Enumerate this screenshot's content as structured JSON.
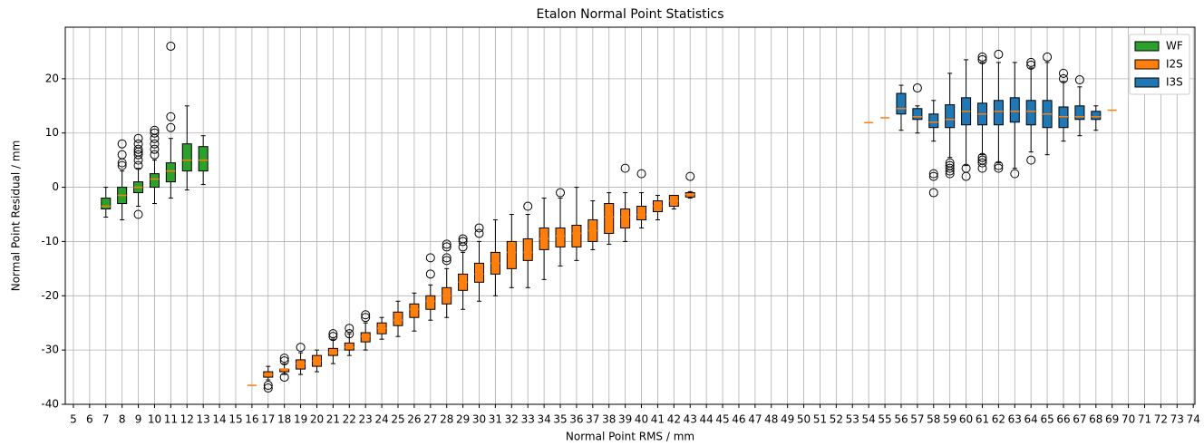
{
  "chart_data": {
    "type": "box",
    "title": "Etalon Normal Point Statistics",
    "x_label": "Normal Point RMS / mm",
    "y_label": "Normal Point Residual / mm",
    "xlim": [
      4.5,
      74.1
    ],
    "ylim": [
      -40,
      29.5
    ],
    "xticks": [
      5,
      6,
      7,
      8,
      9,
      10,
      11,
      12,
      13,
      14,
      15,
      16,
      17,
      18,
      19,
      20,
      21,
      22,
      23,
      24,
      25,
      26,
      27,
      28,
      29,
      30,
      31,
      32,
      33,
      34,
      35,
      36,
      37,
      38,
      39,
      40,
      41,
      42,
      43,
      44,
      45,
      46,
      47,
      48,
      49,
      50,
      51,
      52,
      53,
      54,
      55,
      56,
      57,
      58,
      59,
      60,
      61,
      62,
      63,
      64,
      65,
      66,
      67,
      68,
      69,
      70,
      71,
      72,
      73,
      74
    ],
    "yticks": [
      -40,
      -30,
      -20,
      -10,
      0,
      10,
      20
    ],
    "grid": true,
    "legend_position": "upper right",
    "median_color": "#ff7f0e",
    "series": [
      {
        "name": "WF",
        "color": "#2ca02c",
        "boxes": [
          {
            "x": 7,
            "low": -5.5,
            "q1": -4,
            "median": -3.5,
            "q3": -2,
            "high": 0,
            "outliers": []
          },
          {
            "x": 8,
            "low": -6,
            "q1": -3,
            "median": -1.5,
            "q3": 0,
            "high": 3,
            "outliers": [
              4,
              4.5,
              6,
              8
            ]
          },
          {
            "x": 9,
            "low": -3.5,
            "q1": -1,
            "median": 0,
            "q3": 1,
            "high": 3.5,
            "outliers": [
              -5,
              4,
              5,
              6,
              6.5,
              7,
              8,
              9
            ]
          },
          {
            "x": 10,
            "low": -3,
            "q1": 0,
            "median": 1.5,
            "q3": 2.5,
            "high": 5,
            "outliers": [
              6,
              7,
              8,
              9,
              10,
              10.5
            ]
          },
          {
            "x": 11,
            "low": -2,
            "q1": 1,
            "median": 3,
            "q3": 4.5,
            "high": 9,
            "outliers": [
              11,
              13,
              26
            ]
          },
          {
            "x": 12,
            "low": -0.5,
            "q1": 3,
            "median": 5,
            "q3": 8,
            "high": 15,
            "outliers": []
          },
          {
            "x": 13,
            "low": 0.5,
            "q1": 3,
            "median": 5,
            "q3": 7.5,
            "high": 9.5,
            "outliers": []
          }
        ]
      },
      {
        "name": "I2S",
        "color": "#ff7f0e",
        "boxes": [
          {
            "x": 16,
            "low": -36.5,
            "q1": -36.5,
            "median": -36.5,
            "q3": -36.5,
            "high": -36.5,
            "outliers": []
          },
          {
            "x": 17,
            "low": -35.5,
            "q1": -35,
            "median": -34.5,
            "q3": -34,
            "high": -33,
            "outliers": [
              -36.5,
              -37
            ]
          },
          {
            "x": 18,
            "low": -34.5,
            "q1": -34,
            "median": -33.5,
            "q3": -33.5,
            "high": -32.5,
            "outliers": [
              -32,
              -31.5,
              -35
            ]
          },
          {
            "x": 19,
            "low": -34.5,
            "q1": -33.5,
            "median": -32.5,
            "q3": -31.8,
            "high": -30.5,
            "outliers": [
              -29.5
            ]
          },
          {
            "x": 20,
            "low": -34,
            "q1": -33,
            "median": -32,
            "q3": -31,
            "high": -30,
            "outliers": []
          },
          {
            "x": 21,
            "low": -32.5,
            "q1": -31,
            "median": -30.5,
            "q3": -29.7,
            "high": -28,
            "outliers": [
              -27,
              -27.5
            ]
          },
          {
            "x": 22,
            "low": -31,
            "q1": -30,
            "median": -29.5,
            "q3": -28.7,
            "high": -27,
            "outliers": [
              -26,
              -27
            ]
          },
          {
            "x": 23,
            "low": -30,
            "q1": -28.5,
            "median": -27.5,
            "q3": -26.8,
            "high": -25,
            "outliers": [
              -24,
              -23.5
            ]
          },
          {
            "x": 24,
            "low": -28,
            "q1": -27,
            "median": -26,
            "q3": -25,
            "high": -24,
            "outliers": []
          },
          {
            "x": 25,
            "low": -27.5,
            "q1": -25.5,
            "median": -24.5,
            "q3": -23,
            "high": -21,
            "outliers": []
          },
          {
            "x": 26,
            "low": -26.5,
            "q1": -24,
            "median": -22.5,
            "q3": -21.5,
            "high": -19.5,
            "outliers": []
          },
          {
            "x": 27,
            "low": -24.5,
            "q1": -22.5,
            "median": -21,
            "q3": -20,
            "high": -18,
            "outliers": [
              -16,
              -13
            ]
          },
          {
            "x": 28,
            "low": -24,
            "q1": -21.5,
            "median": -20,
            "q3": -18.5,
            "high": -15,
            "outliers": [
              -13.5,
              -13,
              -11,
              -10.5
            ]
          },
          {
            "x": 29,
            "low": -22.5,
            "q1": -19,
            "median": -17.5,
            "q3": -16,
            "high": -12,
            "outliers": [
              -11,
              -10,
              -9.5
            ]
          },
          {
            "x": 30,
            "low": -21,
            "q1": -17.5,
            "median": -16,
            "q3": -14,
            "high": -10,
            "outliers": [
              -8.5,
              -7.5
            ]
          },
          {
            "x": 31,
            "low": -20,
            "q1": -16,
            "median": -14,
            "q3": -12,
            "high": -6,
            "outliers": []
          },
          {
            "x": 32,
            "low": -18.5,
            "q1": -15,
            "median": -12,
            "q3": -10,
            "high": -5,
            "outliers": []
          },
          {
            "x": 33,
            "low": -18.5,
            "q1": -13.5,
            "median": -12,
            "q3": -9.5,
            "high": -5,
            "outliers": [
              -3.5
            ]
          },
          {
            "x": 34,
            "low": -17,
            "q1": -11.5,
            "median": -9.5,
            "q3": -7.5,
            "high": -2,
            "outliers": []
          },
          {
            "x": 35,
            "low": -14.5,
            "q1": -11,
            "median": -9,
            "q3": -7.5,
            "high": -2,
            "outliers": [
              -1
            ]
          },
          {
            "x": 36,
            "low": -13.5,
            "q1": -11,
            "median": -8.5,
            "q3": -7,
            "high": 0,
            "outliers": []
          },
          {
            "x": 37,
            "low": -11.5,
            "q1": -10,
            "median": -8,
            "q3": -6,
            "high": -2.5,
            "outliers": []
          },
          {
            "x": 38,
            "low": -10.5,
            "q1": -8.5,
            "median": -5.5,
            "q3": -3,
            "high": -1,
            "outliers": []
          },
          {
            "x": 39,
            "low": -10,
            "q1": -7.5,
            "median": -5.5,
            "q3": -4,
            "high": -1,
            "outliers": [
              3.5
            ]
          },
          {
            "x": 40,
            "low": -7.5,
            "q1": -6,
            "median": -5,
            "q3": -3.5,
            "high": -1,
            "outliers": [
              2.5
            ]
          },
          {
            "x": 41,
            "low": -6,
            "q1": -4.5,
            "median": -3.5,
            "q3": -2.5,
            "high": -1.5,
            "outliers": []
          },
          {
            "x": 42,
            "low": -4,
            "q1": -3.5,
            "median": -2.5,
            "q3": -1.5,
            "high": -1.5,
            "outliers": []
          },
          {
            "x": 43,
            "low": -2,
            "q1": -1.8,
            "median": -1.3,
            "q3": -1,
            "high": -0.8,
            "outliers": [
              2
            ]
          }
        ]
      },
      {
        "name": "I3S",
        "color": "#1f77b4",
        "boxes": [
          {
            "x": 54,
            "low": 11.9,
            "q1": 11.9,
            "median": 11.9,
            "q3": 11.9,
            "high": 11.9,
            "outliers": []
          },
          {
            "x": 55,
            "low": 12.8,
            "q1": 12.8,
            "median": 12.8,
            "q3": 12.8,
            "high": 12.8,
            "outliers": []
          },
          {
            "x": 56,
            "low": 10.5,
            "q1": 13.5,
            "median": 14.5,
            "q3": 17.3,
            "high": 18.8,
            "outliers": []
          },
          {
            "x": 57,
            "low": 10,
            "q1": 12.5,
            "median": 13,
            "q3": 14.5,
            "high": 15,
            "outliers": [
              18.3
            ]
          },
          {
            "x": 58,
            "low": 8.5,
            "q1": 11,
            "median": 12,
            "q3": 13.5,
            "high": 16,
            "outliers": [
              2,
              2.5,
              -1
            ]
          },
          {
            "x": 59,
            "low": 5.5,
            "q1": 11,
            "median": 12.5,
            "q3": 15.2,
            "high": 21,
            "outliers": [
              2.5,
              3,
              3.5,
              4,
              4.5
            ]
          },
          {
            "x": 60,
            "low": 4,
            "q1": 11.5,
            "median": 14,
            "q3": 16.5,
            "high": 23.5,
            "outliers": [
              2,
              3.5
            ]
          },
          {
            "x": 61,
            "low": 6,
            "q1": 11.5,
            "median": 13.5,
            "q3": 15.5,
            "high": 23,
            "outliers": [
              3.5,
              4.5,
              5,
              5.5,
              23.5,
              24
            ]
          },
          {
            "x": 62,
            "low": 4.5,
            "q1": 11.5,
            "median": 14,
            "q3": 16,
            "high": 23,
            "outliers": [
              3.5,
              4,
              24.5
            ]
          },
          {
            "x": 63,
            "low": 3.5,
            "q1": 12,
            "median": 14,
            "q3": 16.5,
            "high": 23,
            "outliers": [
              2.5
            ]
          },
          {
            "x": 64,
            "low": 6.5,
            "q1": 11.5,
            "median": 14,
            "q3": 16,
            "high": 22,
            "outliers": [
              5,
              22.5,
              23
            ]
          },
          {
            "x": 65,
            "low": 6,
            "q1": 11,
            "median": 13.5,
            "q3": 16,
            "high": 23,
            "outliers": [
              24
            ]
          },
          {
            "x": 66,
            "low": 8.5,
            "q1": 11,
            "median": 13,
            "q3": 14.8,
            "high": 19.5,
            "outliers": [
              20,
              21
            ]
          },
          {
            "x": 67,
            "low": 9.5,
            "q1": 12.5,
            "median": 13,
            "q3": 15,
            "high": 18.5,
            "outliers": [
              19.8
            ]
          },
          {
            "x": 68,
            "low": 10.5,
            "q1": 12.5,
            "median": 13,
            "q3": 14,
            "high": 15,
            "outliers": []
          },
          {
            "x": 69,
            "low": 14.2,
            "q1": 14.2,
            "median": 14.2,
            "q3": 14.2,
            "high": 14.2,
            "outliers": []
          }
        ]
      }
    ]
  }
}
